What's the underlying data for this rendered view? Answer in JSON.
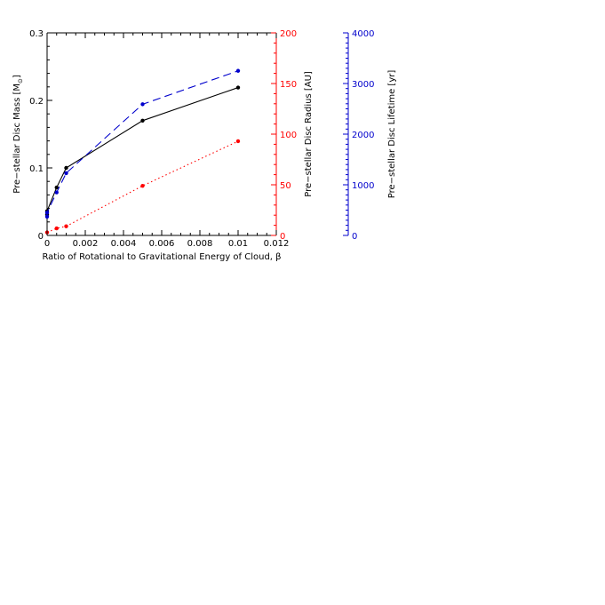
{
  "chart_data": {
    "type": "line",
    "xlabel": "Ratio of Rotational to Gravitational Energy of Cloud, β",
    "xlim": [
      0,
      0.012
    ],
    "x_ticks": [
      "0",
      "0.002",
      "0.004",
      "0.006",
      "0.008",
      "0.01",
      "0.012"
    ],
    "axes": {
      "mass": {
        "label_prefix": "Pre−stellar Disc Mass [M",
        "label_subscript": "⊙",
        "label_suffix": "]",
        "ylim": [
          0,
          0.3
        ],
        "ticks": [
          "0",
          "0.1",
          "0.2",
          "0.3"
        ],
        "color": "#000000"
      },
      "radius": {
        "label": "Pre−stellar Disc Radius [AU]",
        "ylim": [
          0,
          200
        ],
        "ticks": [
          "0",
          "50",
          "100",
          "150",
          "200"
        ],
        "color": "#ff0000"
      },
      "lifetime": {
        "label": "Pre−stellar Disc Lifetime [yr]",
        "ylim": [
          0,
          4000
        ],
        "ticks": [
          "0",
          "1000",
          "2000",
          "3000",
          "4000"
        ],
        "color": "#0000cc"
      }
    },
    "series": [
      {
        "axis": "mass",
        "color": "#000000",
        "line_style": "solid",
        "x": [
          0,
          0,
          0.0005,
          0.001,
          0.005,
          0.01
        ],
        "y": [
          0.031,
          0.036,
          0.071,
          0.1,
          0.17,
          0.219
        ]
      },
      {
        "axis": "radius",
        "color": "#ff0000",
        "line_style": "dotted",
        "x": [
          0,
          0.0005,
          0.001,
          0.005,
          0.01
        ],
        "y": [
          3,
          7,
          9,
          49,
          93
        ]
      },
      {
        "axis": "lifetime",
        "color": "#0000cc",
        "line_style": "dashed",
        "x": [
          0,
          0,
          0.0005,
          0.001,
          0.005,
          0.01
        ],
        "y": [
          370,
          450,
          850,
          1230,
          2590,
          3250
        ]
      }
    ]
  }
}
